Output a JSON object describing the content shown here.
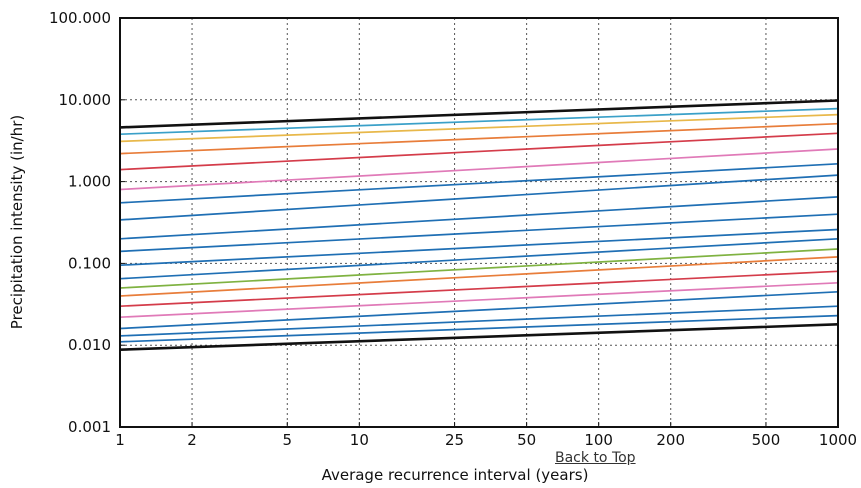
{
  "link": {
    "back_to_top": "Back to Top"
  },
  "chart_data": {
    "type": "line",
    "title": "",
    "xlabel": "Average recurrence interval (years)",
    "ylabel": "Precipitation intensity (in/hr)",
    "xscale": "log",
    "yscale": "log",
    "xlim": [
      1,
      1000
    ],
    "ylim": [
      0.001,
      100
    ],
    "grid": true,
    "x_ticks": [
      1,
      2,
      5,
      10,
      25,
      50,
      100,
      200,
      500,
      1000
    ],
    "x_tick_labels": [
      "1",
      "2",
      "5",
      "10",
      "25",
      "50",
      "100",
      "200",
      "500",
      "1000"
    ],
    "y_ticks": [
      0.001,
      0.01,
      0.1,
      1,
      10,
      100
    ],
    "y_tick_labels": [
      "0.001",
      "0.010",
      "0.100",
      "1.000",
      "10.000",
      "100.000"
    ],
    "x": [
      1,
      1000
    ],
    "series": [
      {
        "color": "#111111",
        "values": [
          4.6,
          9.8
        ]
      },
      {
        "color": "#3aa0c8",
        "values": [
          3.8,
          7.8
        ]
      },
      {
        "color": "#e8b84a",
        "values": [
          3.1,
          6.6
        ]
      },
      {
        "color": "#e87d3a",
        "values": [
          2.2,
          5.1
        ]
      },
      {
        "color": "#d43c4a",
        "values": [
          1.4,
          3.9
        ]
      },
      {
        "color": "#e07ab8",
        "values": [
          0.8,
          2.5
        ]
      },
      {
        "color": "#1f6fb4",
        "values": [
          0.55,
          1.65
        ]
      },
      {
        "color": "#1f6fb4",
        "values": [
          0.34,
          1.2
        ]
      },
      {
        "color": "#1f6fb4",
        "values": [
          0.2,
          0.65
        ]
      },
      {
        "color": "#1f6fb4",
        "values": [
          0.14,
          0.4
        ]
      },
      {
        "color": "#1f6fb4",
        "values": [
          0.095,
          0.26
        ]
      },
      {
        "color": "#1f6fb4",
        "values": [
          0.065,
          0.2
        ]
      },
      {
        "color": "#7fb241",
        "values": [
          0.05,
          0.15
        ]
      },
      {
        "color": "#e87d3a",
        "values": [
          0.04,
          0.12
        ]
      },
      {
        "color": "#d43c4a",
        "values": [
          0.03,
          0.08
        ]
      },
      {
        "color": "#e07ab8",
        "values": [
          0.022,
          0.058
        ]
      },
      {
        "color": "#1f6fb4",
        "values": [
          0.016,
          0.045
        ]
      },
      {
        "color": "#1f6fb4",
        "values": [
          0.013,
          0.03
        ]
      },
      {
        "color": "#1f6fb4",
        "values": [
          0.011,
          0.023
        ]
      },
      {
        "color": "#111111",
        "values": [
          0.0088,
          0.018
        ]
      }
    ]
  }
}
